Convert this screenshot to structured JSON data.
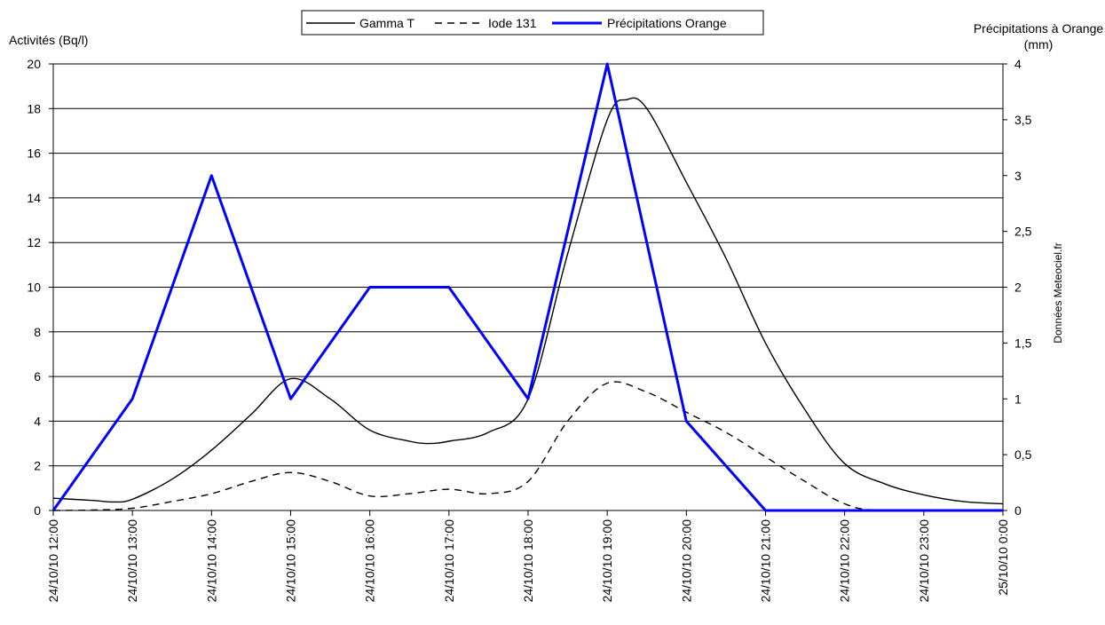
{
  "chart_data": {
    "type": "line",
    "legend": {
      "placement": "top-center",
      "entries": [
        "Gamma T",
        "Iode 131",
        "Précipitations Orange"
      ]
    },
    "y_left": {
      "label": "Activités (Bq/l)",
      "ylim": [
        0,
        20
      ],
      "ticks": [
        "0",
        "2",
        "4",
        "6",
        "8",
        "10",
        "12",
        "14",
        "16",
        "18",
        "20"
      ]
    },
    "y_right": {
      "label_line1": "Précipitations à Orange",
      "label_line2": "(mm)",
      "ylim": [
        0,
        4
      ],
      "ticks": [
        "0",
        "0,5",
        "1",
        "1,5",
        "2",
        "2,5",
        "3",
        "3,5",
        "4"
      ]
    },
    "source_note": "Données Meteociel.fr",
    "x_ticks": [
      "24/10/10 12:00",
      "24/10/10 13:00",
      "24/10/10 14:00",
      "24/10/10 15:00",
      "24/10/10 16:00",
      "24/10/10 17:00",
      "24/10/10 18:00",
      "24/10/10 19:00",
      "24/10/10 20:00",
      "24/10/10 21:00",
      "24/10/10 22:00",
      "24/10/10 23:00",
      "25/10/10 0:00"
    ],
    "grid": "horizontal",
    "series": [
      {
        "name": "Gamma T",
        "axis": "left",
        "style": "solid",
        "color": "#000000",
        "points": [
          [
            "24/10/10 12:00",
            0.55
          ],
          [
            "24/10/10 12:30",
            0.45
          ],
          [
            "24/10/10 12:45",
            0.38
          ],
          [
            "24/10/10 13:00",
            0.5
          ],
          [
            "24/10/10 13:30",
            1.4
          ],
          [
            "24/10/10 14:00",
            2.7
          ],
          [
            "24/10/10 14:30",
            4.3
          ],
          [
            "24/10/10 15:00",
            5.9
          ],
          [
            "24/10/10 15:30",
            5.0
          ],
          [
            "24/10/10 16:00",
            3.6
          ],
          [
            "24/10/10 16:30",
            3.1
          ],
          [
            "24/10/10 16:45",
            3.0
          ],
          [
            "24/10/10 17:00",
            3.1
          ],
          [
            "24/10/10 17:30",
            3.5
          ],
          [
            "24/10/10 18:00",
            5.0
          ],
          [
            "24/10/10 18:30",
            11.5
          ],
          [
            "24/10/10 19:00",
            17.5
          ],
          [
            "24/10/10 19:15",
            18.4
          ],
          [
            "24/10/10 19:30",
            18.0
          ],
          [
            "24/10/10 20:00",
            14.7
          ],
          [
            "24/10/10 20:30",
            11.3
          ],
          [
            "24/10/10 21:00",
            7.5
          ],
          [
            "24/10/10 21:30",
            4.5
          ],
          [
            "24/10/10 22:00",
            2.1
          ],
          [
            "24/10/10 22:30",
            1.2
          ],
          [
            "24/10/10 23:00",
            0.7
          ],
          [
            "24/10/10 23:30",
            0.4
          ],
          [
            "25/10/10 0:00",
            0.3
          ]
        ]
      },
      {
        "name": "Iode 131",
        "axis": "left",
        "style": "dashed",
        "color": "#000000",
        "points": [
          [
            "24/10/10 12:00",
            0.0
          ],
          [
            "24/10/10 12:30",
            0.02
          ],
          [
            "24/10/10 13:00",
            0.1
          ],
          [
            "24/10/10 13:30",
            0.4
          ],
          [
            "24/10/10 14:00",
            0.75
          ],
          [
            "24/10/10 14:30",
            1.3
          ],
          [
            "24/10/10 15:00",
            1.7
          ],
          [
            "24/10/10 15:30",
            1.3
          ],
          [
            "24/10/10 16:00",
            0.65
          ],
          [
            "24/10/10 16:30",
            0.75
          ],
          [
            "24/10/10 17:00",
            0.95
          ],
          [
            "24/10/10 17:30",
            0.75
          ],
          [
            "24/10/10 18:00",
            1.3
          ],
          [
            "24/10/10 18:30",
            4.0
          ],
          [
            "24/10/10 19:00",
            5.7
          ],
          [
            "24/10/10 19:30",
            5.3
          ],
          [
            "24/10/10 20:00",
            4.4
          ],
          [
            "24/10/10 20:30",
            3.5
          ],
          [
            "24/10/10 21:00",
            2.4
          ],
          [
            "24/10/10 21:30",
            1.3
          ],
          [
            "24/10/10 22:00",
            0.3
          ],
          [
            "24/10/10 22:30",
            0.0
          ],
          [
            "25/10/10 0:00",
            0.0
          ]
        ]
      },
      {
        "name": "Précipitations Orange",
        "axis": "right",
        "style": "solid-thick",
        "color": "#0000ff",
        "points": [
          [
            "24/10/10 12:00",
            0
          ],
          [
            "24/10/10 13:00",
            1
          ],
          [
            "24/10/10 14:00",
            3
          ],
          [
            "24/10/10 15:00",
            1
          ],
          [
            "24/10/10 16:00",
            2
          ],
          [
            "24/10/10 17:00",
            2
          ],
          [
            "24/10/10 18:00",
            1
          ],
          [
            "24/10/10 19:00",
            4
          ],
          [
            "24/10/10 20:00",
            0.8
          ],
          [
            "24/10/10 21:00",
            0
          ],
          [
            "24/10/10 22:00",
            0
          ],
          [
            "24/10/10 23:00",
            0
          ],
          [
            "25/10/10 0:00",
            0
          ]
        ]
      }
    ]
  }
}
